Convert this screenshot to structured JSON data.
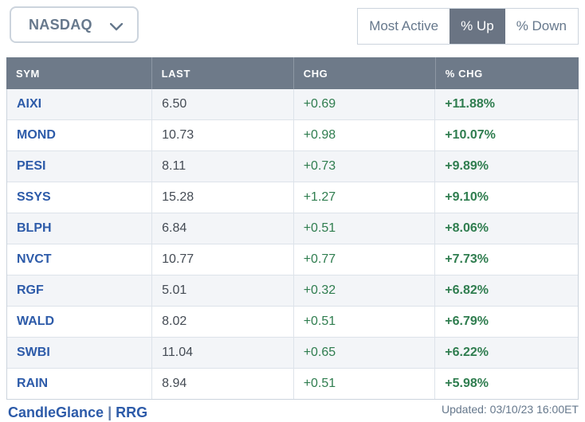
{
  "exchange_selector": {
    "value": "NASDAQ"
  },
  "filter_buttons": {
    "most_active": "Most Active",
    "pct_up": "% Up",
    "pct_down": "% Down",
    "selected": "% Up"
  },
  "table": {
    "columns": [
      "SYM",
      "LAST",
      "CHG",
      "% CHG"
    ],
    "rows": [
      {
        "sym": "AIXI",
        "last": "6.50",
        "chg": "+0.69",
        "pct": "+11.88%"
      },
      {
        "sym": "MOND",
        "last": "10.73",
        "chg": "+0.98",
        "pct": "+10.07%"
      },
      {
        "sym": "PESI",
        "last": "8.11",
        "chg": "+0.73",
        "pct": "+9.89%"
      },
      {
        "sym": "SSYS",
        "last": "15.28",
        "chg": "+1.27",
        "pct": "+9.10%"
      },
      {
        "sym": "BLPH",
        "last": "6.84",
        "chg": "+0.51",
        "pct": "+8.06%"
      },
      {
        "sym": "NVCT",
        "last": "10.77",
        "chg": "+0.77",
        "pct": "+7.73%"
      },
      {
        "sym": "RGF",
        "last": "5.01",
        "chg": "+0.32",
        "pct": "+6.82%"
      },
      {
        "sym": "WALD",
        "last": "8.02",
        "chg": "+0.51",
        "pct": "+6.79%"
      },
      {
        "sym": "SWBI",
        "last": "11.04",
        "chg": "+0.65",
        "pct": "+6.22%"
      },
      {
        "sym": "RAIN",
        "last": "8.94",
        "chg": "+0.51",
        "pct": "+5.98%"
      }
    ]
  },
  "footer": {
    "link_candleglance": "CandleGlance",
    "separator": "|",
    "link_rrg": "RRG",
    "updated": "Updated: 03/10/23 16:00ET"
  },
  "colors": {
    "header_bg": "#6e7a89",
    "active_button_bg": "#6a7483",
    "positive": "#2f7d4f",
    "symbol_link": "#2d5ba9",
    "row_stripe": "#f3f5f8",
    "muted_text": "#66788c",
    "value_text": "#444b54",
    "border": "#ccd4dd"
  }
}
